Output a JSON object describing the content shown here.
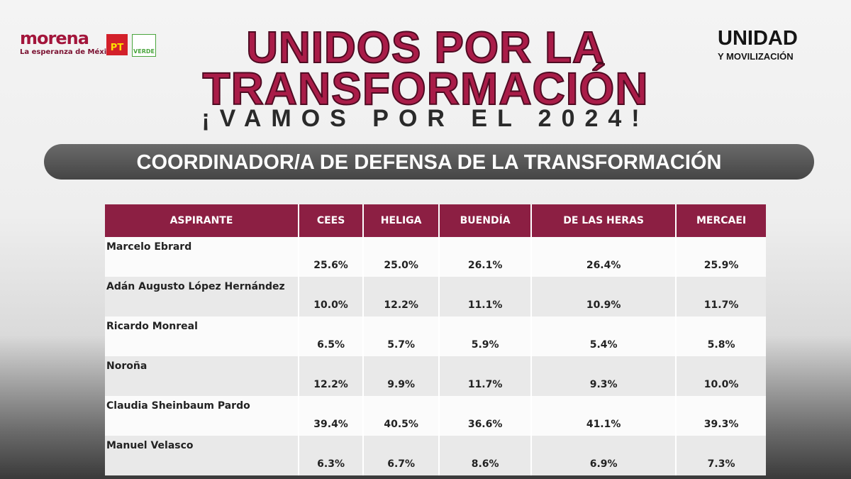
{
  "logos": {
    "morena": "morena",
    "morena_tagline": "La esperanza de México",
    "pt": "PT",
    "verde": "VERDE",
    "unidad": "UNIDAD",
    "movilizacion": "Y MOVILIZACIÓN"
  },
  "header": {
    "title_line1": "UNIDOS POR LA",
    "title_line2": "TRANSFORMACIÓN",
    "subtitle": "¡VAMOS POR EL 2024!",
    "banner": "COORDINADOR/A DE DEFENSA DE LA TRANSFORMACIÓN"
  },
  "table": {
    "columns": [
      "ASPIRANTE",
      "CEES",
      "HELIGA",
      "BUENDÍA",
      "DE LAS HERAS",
      "MERCAEI"
    ],
    "rows": [
      [
        "Marcelo Ebrard",
        "25.6%",
        "25.0%",
        "26.1%",
        "26.4%",
        "25.9%"
      ],
      [
        "Adán Augusto López Hernández",
        "10.0%",
        "12.2%",
        "11.1%",
        "10.9%",
        "11.7%"
      ],
      [
        "Ricardo Monreal",
        "6.5%",
        "5.7%",
        "5.9%",
        "5.4%",
        "5.8%"
      ],
      [
        "Noroña",
        "12.2%",
        "9.9%",
        "11.7%",
        "9.3%",
        "10.0%"
      ],
      [
        "Claudia Sheinbaum Pardo",
        "39.4%",
        "40.5%",
        "36.6%",
        "41.1%",
        "39.3%"
      ],
      [
        "Manuel Velasco",
        "6.3%",
        "6.7%",
        "8.6%",
        "6.9%",
        "7.3%"
      ]
    ]
  }
}
